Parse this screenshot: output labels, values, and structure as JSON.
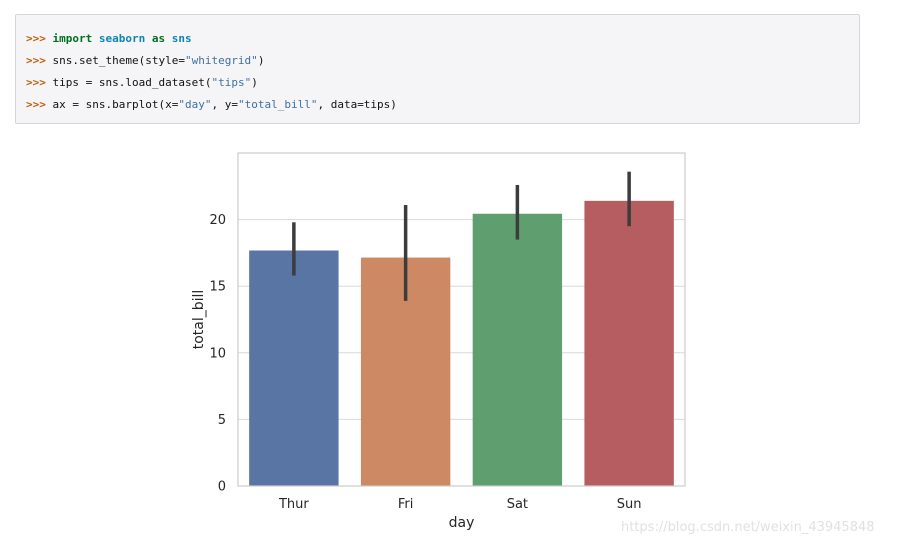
{
  "code": {
    "prompt": ">>>",
    "lines": [
      [
        [
          "kw",
          "import"
        ],
        [
          "t",
          " "
        ],
        [
          "ns",
          "seaborn"
        ],
        [
          "t",
          " "
        ],
        [
          "kw",
          "as"
        ],
        [
          "t",
          " "
        ],
        [
          "ns",
          "sns"
        ]
      ],
      [
        [
          "t",
          "sns.set_theme(style="
        ],
        [
          "str",
          "\"whitegrid\""
        ],
        [
          "t",
          ")"
        ]
      ],
      [
        [
          "t",
          "tips = sns.load_dataset("
        ],
        [
          "str",
          "\"tips\""
        ],
        [
          "t",
          ")"
        ]
      ],
      [
        [
          "t",
          "ax = sns.barplot(x="
        ],
        [
          "str",
          "\"day\""
        ],
        [
          "t",
          ", y="
        ],
        [
          "str",
          "\"total_bill\""
        ],
        [
          "t",
          ", data=tips)"
        ]
      ]
    ]
  },
  "chart_data": {
    "type": "bar",
    "xlabel": "day",
    "ylabel": "total_bill",
    "categories": [
      "Thur",
      "Fri",
      "Sat",
      "Sun"
    ],
    "values": [
      17.68,
      17.15,
      20.44,
      21.41
    ],
    "ci_low": [
      15.8,
      13.9,
      18.5,
      19.5
    ],
    "ci_high": [
      19.8,
      21.1,
      22.6,
      23.6
    ],
    "colors": [
      "#5875a4",
      "#cc8963",
      "#5f9e6e",
      "#b55d60"
    ],
    "ylim": [
      0,
      25
    ],
    "yticks": [
      0,
      5,
      10,
      15,
      20
    ],
    "grid": true
  },
  "watermark": "https://blog.csdn.net/weixin_43945848"
}
